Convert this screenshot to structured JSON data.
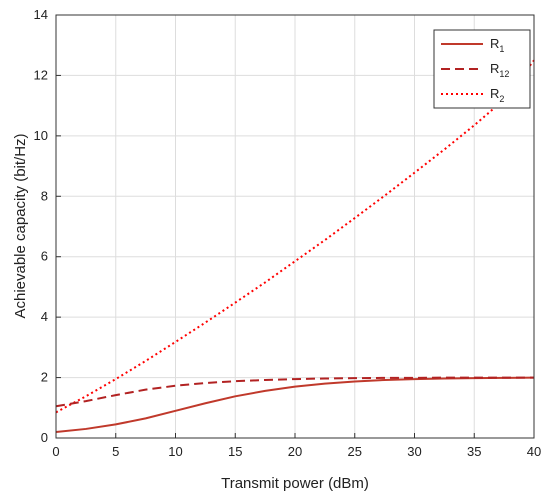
{
  "chart_data": {
    "type": "line",
    "xlabel": "Transmit power (dBm)",
    "ylabel": "Achievable capacity (bit/Hz)",
    "xlim": [
      0,
      40
    ],
    "ylim": [
      0,
      14
    ],
    "x_ticks": [
      "0",
      "5",
      "10",
      "15",
      "20",
      "25",
      "30",
      "35",
      "40"
    ],
    "y_ticks": [
      "0",
      "2",
      "4",
      "6",
      "8",
      "10",
      "12",
      "14"
    ],
    "grid": true,
    "legend_position": "top-right",
    "x": [
      0,
      2.5,
      5,
      7.5,
      10,
      12.5,
      15,
      17.5,
      20,
      22.5,
      25,
      27.5,
      30,
      32.5,
      35,
      37.5,
      40
    ],
    "series": [
      {
        "name": "R",
        "name_subscript": "1",
        "style": "solid",
        "color": "#c0392b",
        "values": [
          0.2,
          0.3,
          0.45,
          0.65,
          0.9,
          1.15,
          1.38,
          1.56,
          1.7,
          1.8,
          1.87,
          1.92,
          1.95,
          1.97,
          1.98,
          1.99,
          2.0
        ]
      },
      {
        "name": "R",
        "name_subscript": "12",
        "style": "dashed",
        "color": "#b22222",
        "values": [
          1.05,
          1.22,
          1.42,
          1.6,
          1.73,
          1.82,
          1.88,
          1.92,
          1.95,
          1.97,
          1.98,
          1.99,
          1.99,
          2.0,
          2.0,
          2.0,
          2.0
        ]
      },
      {
        "name": "R",
        "name_subscript": "2",
        "style": "dotted",
        "color": "#ff0000",
        "values": [
          0.85,
          1.38,
          1.95,
          2.55,
          3.18,
          3.82,
          4.48,
          5.15,
          5.85,
          6.55,
          7.28,
          8.02,
          8.78,
          9.55,
          10.35,
          11.2,
          12.5
        ]
      }
    ]
  }
}
